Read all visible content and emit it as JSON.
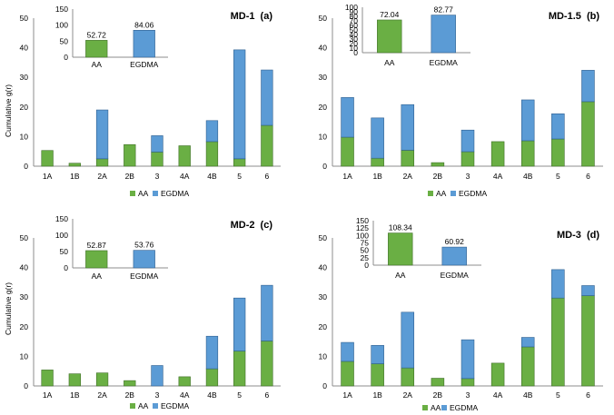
{
  "colors": {
    "aa": "#6aaf44",
    "egdma": "#5b9bd5",
    "axis": "#8c8c8c",
    "edge": "#3f6f27",
    "edge2": "#2f5f8f"
  },
  "chart_data": [
    {
      "type": "bar",
      "stacked": true,
      "panel": "a",
      "title": "MD-1",
      "panel_label": "(a)",
      "ylabel": "Cumulative g(r)",
      "ylim": [
        0,
        50
      ],
      "yticks": [
        "0",
        "10",
        "20",
        "30",
        "40",
        "50"
      ],
      "categories": [
        "1A",
        "1B",
        "2A",
        "2B",
        "3",
        "4A",
        "4B",
        "5",
        "6"
      ],
      "series": [
        {
          "name": "AA",
          "values": [
            5.3,
            1.0,
            2.5,
            7.3,
            4.8,
            6.9,
            8.3,
            2.5,
            13.8
          ]
        },
        {
          "name": "EGDMA",
          "values": [
            0,
            0,
            16.5,
            0,
            5.5,
            0,
            7.1,
            36.8,
            18.7
          ]
        }
      ],
      "legend": [
        "AA",
        "EGDMA"
      ],
      "inset": {
        "categories": [
          "AA",
          "EGDMA"
        ],
        "values": [
          52.72,
          84.06
        ],
        "labels": [
          "52.72",
          "84.06"
        ],
        "ylim": [
          0,
          150
        ],
        "yticks": [
          "0",
          "50",
          "100",
          "150"
        ]
      }
    },
    {
      "type": "bar",
      "stacked": true,
      "panel": "b",
      "title": "MD-1.5",
      "panel_label": "(b)",
      "ylabel": "",
      "ylim": [
        0,
        50
      ],
      "yticks": [
        "0",
        "10",
        "20",
        "30",
        "40",
        "50"
      ],
      "categories": [
        "1A",
        "1B",
        "2A",
        "2B",
        "3",
        "4A",
        "4B",
        "5",
        "6"
      ],
      "series": [
        {
          "name": "AA",
          "values": [
            9.8,
            2.7,
            5.4,
            1.2,
            4.9,
            8.3,
            8.6,
            9.2,
            21.8
          ]
        },
        {
          "name": "EGDMA",
          "values": [
            13.4,
            13.6,
            15.4,
            0,
            7.3,
            0,
            13.8,
            8.5,
            10.6
          ]
        }
      ],
      "legend": [
        "AA",
        "EGDMA"
      ],
      "inset": {
        "categories": [
          "AA",
          "EGDMA"
        ],
        "values": [
          72.04,
          82.77
        ],
        "labels": [
          "72.04",
          "82.77"
        ],
        "ylim": [
          0,
          100
        ],
        "yticks": [
          "0",
          "10",
          "20",
          "30",
          "40",
          "50",
          "60",
          "70",
          "80",
          "90",
          "100"
        ]
      }
    },
    {
      "type": "bar",
      "stacked": true,
      "panel": "c",
      "title": "MD-2",
      "panel_label": "(c)",
      "ylabel": "Cumulative g(r)",
      "ylim": [
        0,
        50
      ],
      "yticks": [
        "0",
        "10",
        "20",
        "30",
        "40",
        "50"
      ],
      "categories": [
        "1A",
        "1B",
        "2A",
        "2B",
        "3",
        "4A",
        "4B",
        "5",
        "6"
      ],
      "series": [
        {
          "name": "AA",
          "values": [
            5.4,
            4.1,
            4.4,
            1.8,
            0,
            3.1,
            5.8,
            11.8,
            15.2
          ]
        },
        {
          "name": "EGDMA",
          "values": [
            0,
            0,
            0,
            0,
            6.9,
            0,
            11.0,
            17.9,
            18.8
          ]
        }
      ],
      "legend": [
        "AA",
        "EGDMA"
      ],
      "inset": {
        "categories": [
          "AA",
          "EGDMA"
        ],
        "values": [
          52.87,
          53.76
        ],
        "labels": [
          "52.87",
          "53.76"
        ],
        "ylim": [
          0,
          150
        ],
        "yticks": [
          "0",
          "50",
          "100",
          "150"
        ]
      }
    },
    {
      "type": "bar",
      "stacked": true,
      "panel": "d",
      "title": "MD-3",
      "panel_label": "(d)",
      "ylabel": "",
      "ylim": [
        0,
        50
      ],
      "yticks": [
        "0",
        "10",
        "20",
        "30",
        "40",
        "50"
      ],
      "categories": [
        "1A",
        "1B",
        "2A",
        "2B",
        "3",
        "4A",
        "4B",
        "5",
        "6"
      ],
      "series": [
        {
          "name": "AA",
          "values": [
            8.3,
            7.5,
            6.1,
            2.6,
            2.5,
            7.7,
            13.2,
            29.7,
            30.5
          ]
        },
        {
          "name": "EGDMA",
          "values": [
            6.4,
            6.2,
            18.8,
            0,
            13.1,
            0,
            3.2,
            9.6,
            3.4
          ]
        }
      ],
      "legend": [
        "AA",
        "EGDMA"
      ],
      "inset": {
        "categories": [
          "AA",
          "EGDMA"
        ],
        "values": [
          108.34,
          60.92
        ],
        "labels": [
          "108.34",
          "60.92"
        ],
        "ylim": [
          0,
          150
        ],
        "yticks": [
          "0",
          "25",
          "50",
          "75",
          "100",
          "125",
          "150"
        ]
      }
    }
  ]
}
